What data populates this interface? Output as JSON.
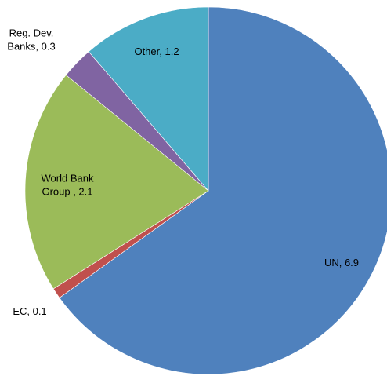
{
  "chart_data": {
    "type": "pie",
    "title": "",
    "slices": [
      {
        "name": "UN",
        "label_lines": [
          "UN,  6.9"
        ],
        "value": 6.9,
        "color": "#4F81BD"
      },
      {
        "name": "EC",
        "label_lines": [
          "EC,  0.1"
        ],
        "value": 0.1,
        "color": "#C0504D"
      },
      {
        "name": "World Bank Group",
        "label_lines": [
          "World Bank",
          "Group ,  2.1"
        ],
        "value": 2.1,
        "color": "#9BBB59"
      },
      {
        "name": "Reg. Dev. Banks",
        "label_lines": [
          "Reg. Dev.",
          "Banks,  0.3"
        ],
        "value": 0.3,
        "color": "#8064A2"
      },
      {
        "name": "Other",
        "label_lines": [
          "Other,  1.2"
        ],
        "value": 1.2,
        "color": "#4BACC6"
      }
    ],
    "start_angle": "12 o'clock",
    "direction": "clockwise",
    "legend": "none"
  }
}
